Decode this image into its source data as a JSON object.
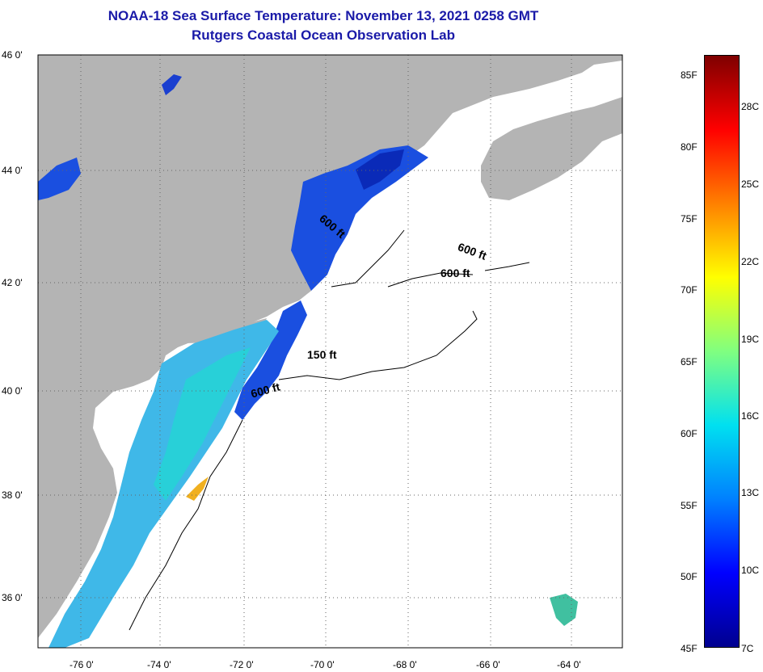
{
  "title": {
    "line1": "NOAA-18 Sea Surface Temperature:  November 13, 2021 0258 GMT",
    "line2": "Rutgers Coastal Ocean Observation Lab"
  },
  "map": {
    "lat_labels": [
      "46 0'",
      "44 0'",
      "42 0'",
      "40 0'",
      "38 0'",
      "36 0'"
    ],
    "lon_labels": [
      "-76 0'",
      "-74 0'",
      "-72 0'",
      "-70 0'",
      "-68 0'",
      "-66 0'",
      "-64 0'"
    ],
    "contour_labels": [
      "600 ft",
      "600 ft",
      "600 ft",
      "150 ft",
      "600 ft"
    ],
    "land_color": "#b4b4b4",
    "no_data_color": "#ffffff"
  },
  "colorbar": {
    "fahrenheit_labels": [
      "85F",
      "80F",
      "75F",
      "70F",
      "65F",
      "60F",
      "55F",
      "50F",
      "45F"
    ],
    "celsius_labels": [
      "28C",
      "25C",
      "22C",
      "19C",
      "16C",
      "13C",
      "10C",
      "7C"
    ],
    "colors": [
      "#7f0000",
      "#ff0000",
      "#ff8000",
      "#ffff00",
      "#80ff80",
      "#00e0f0",
      "#0080ff",
      "#0000ff",
      "#00008f"
    ]
  }
}
